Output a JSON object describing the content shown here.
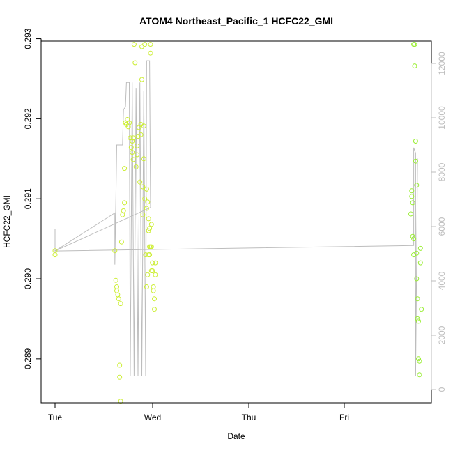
{
  "chart_data": {
    "type": "scatter",
    "title": "ATOM4 Northeast_Pacific_1 HCFC22_GMI",
    "xlabel": "Date",
    "ylabel": "HCFC22_GMI",
    "x_ticks": [
      "Tue",
      "Wed",
      "Thu",
      "Fri"
    ],
    "xlim": [
      -0.0,
      3.87
    ],
    "ylim": [
      0.28845,
      0.29297
    ],
    "y_ticks": [
      "0.289",
      "0.290",
      "0.291",
      "0.292",
      "0.293"
    ],
    "y_tick_values": [
      0.289,
      0.29,
      0.291,
      0.292,
      0.293
    ],
    "y2lim": [
      0,
      12500
    ],
    "y2_ticks": [
      "0",
      "2000",
      "4000",
      "6000",
      "8000",
      "10000",
      "12000"
    ],
    "y2_tick_values": [
      0,
      2000,
      4000,
      6000,
      8000,
      10000,
      12000
    ],
    "grid": false,
    "colors": {
      "points": "#ccee33",
      "points_late": "#99ee33",
      "altitude_line": "#bdbdbd",
      "axis": "#000000"
    },
    "series": [
      {
        "values": [
          [
            0.0,
            0.29035
          ],
          [
            0.0,
            0.2903
          ],
          [
            0.62,
            0.29035
          ],
          [
            0.63,
            0.28998
          ],
          [
            0.64,
            0.2899
          ],
          [
            0.64,
            0.28985
          ],
          [
            0.65,
            0.2898
          ],
          [
            0.66,
            0.28975
          ],
          [
            0.67,
            0.28892
          ],
          [
            0.67,
            0.28877
          ],
          [
            0.68,
            0.28847
          ],
          [
            0.68,
            0.28969
          ],
          [
            0.69,
            0.29046
          ],
          [
            0.7,
            0.2908
          ],
          [
            0.71,
            0.29085
          ],
          [
            0.72,
            0.29095
          ],
          [
            0.72,
            0.29138
          ],
          [
            0.73,
            0.29195
          ],
          [
            0.74,
            0.29193
          ],
          [
            0.75,
            0.29199
          ],
          [
            0.76,
            0.2919
          ],
          [
            0.77,
            0.29195
          ],
          [
            0.78,
            0.29176
          ],
          [
            0.79,
            0.29164
          ],
          [
            0.8,
            0.29172
          ],
          [
            0.8,
            0.29158
          ],
          [
            0.81,
            0.29149
          ],
          [
            0.81,
            0.29176
          ],
          [
            0.82,
            0.29293
          ],
          [
            0.83,
            0.2927
          ],
          [
            0.84,
            0.2914
          ],
          [
            0.85,
            0.29155
          ],
          [
            0.85,
            0.29166
          ],
          [
            0.86,
            0.29178
          ],
          [
            0.87,
            0.29189
          ],
          [
            0.88,
            0.29121
          ],
          [
            0.89,
            0.2918
          ],
          [
            0.89,
            0.29193
          ],
          [
            0.9,
            0.29249
          ],
          [
            0.9,
            0.2929
          ],
          [
            0.91,
            0.29115
          ],
          [
            0.91,
            0.2908
          ],
          [
            0.92,
            0.2915
          ],
          [
            0.92,
            0.29191
          ],
          [
            0.93,
            0.29293
          ],
          [
            0.93,
            0.291
          ],
          [
            0.94,
            0.2903
          ],
          [
            0.95,
            0.29112
          ],
          [
            0.95,
            0.29088
          ],
          [
            0.96,
            0.29096
          ],
          [
            0.97,
            0.29075
          ],
          [
            0.97,
            0.2906
          ],
          [
            0.98,
            0.2904
          ],
          [
            0.98,
            0.2903
          ],
          [
            0.99,
            0.29293
          ],
          [
            0.99,
            0.29282
          ],
          [
            1.0,
            0.29068
          ],
          [
            1.0,
            0.2904
          ],
          [
            1.01,
            0.2902
          ],
          [
            1.01,
            0.2901
          ],
          [
            1.02,
            0.2899
          ],
          [
            1.02,
            0.28985
          ],
          [
            1.03,
            0.28962
          ],
          [
            1.03,
            0.28975
          ],
          [
            1.04,
            0.29005
          ],
          [
            1.04,
            0.2902
          ],
          [
            0.95,
            0.2899
          ],
          [
            0.96,
            0.29005
          ],
          [
            0.97,
            0.2903
          ],
          [
            0.98,
            0.29063
          ],
          [
            0.99,
            0.2904
          ],
          [
            1.0,
            0.2901
          ]
        ]
      },
      {
        "values": [
          [
            3.69,
            0.29081
          ],
          [
            3.7,
            0.2911
          ],
          [
            3.7,
            0.29103
          ],
          [
            3.71,
            0.29095
          ],
          [
            3.71,
            0.29053
          ],
          [
            3.72,
            0.2905
          ],
          [
            3.72,
            0.2903
          ],
          [
            3.72,
            0.29293
          ],
          [
            3.73,
            0.29293
          ],
          [
            3.73,
            0.29266
          ],
          [
            3.74,
            0.29147
          ],
          [
            3.74,
            0.29172
          ],
          [
            3.75,
            0.29117
          ],
          [
            3.75,
            0.29032
          ],
          [
            3.75,
            0.29
          ],
          [
            3.76,
            0.28975
          ],
          [
            3.76,
            0.2895
          ],
          [
            3.77,
            0.28947
          ],
          [
            3.77,
            0.289
          ],
          [
            3.78,
            0.28897
          ],
          [
            3.78,
            0.2888
          ],
          [
            3.79,
            0.2902
          ],
          [
            3.79,
            0.29038
          ],
          [
            3.8,
            0.28962
          ]
        ]
      }
    ],
    "secondary_line": {
      "description_axis": "right",
      "values": [
        [
          0.0,
          5900
        ],
        [
          0.0,
          5100
        ],
        [
          0.62,
          6500
        ],
        [
          0.62,
          4600
        ],
        [
          0.64,
          9000
        ],
        [
          0.7,
          9000
        ],
        [
          0.71,
          10300
        ],
        [
          0.73,
          10400
        ],
        [
          0.74,
          11300
        ],
        [
          0.77,
          11300
        ],
        [
          0.78,
          500
        ],
        [
          0.8,
          11300
        ],
        [
          0.82,
          500
        ],
        [
          0.84,
          11100
        ],
        [
          0.86,
          500
        ],
        [
          0.88,
          11300
        ],
        [
          0.9,
          500
        ],
        [
          0.92,
          11000
        ],
        [
          0.94,
          500
        ],
        [
          0.95,
          12100
        ],
        [
          0.98,
          12100
        ],
        [
          0.99,
          6700
        ],
        [
          0.0,
          5100
        ],
        [
          3.72,
          5300
        ],
        [
          3.72,
          8900
        ],
        [
          3.74,
          8700
        ],
        [
          3.74,
          500
        ],
        [
          3.76,
          8500
        ]
      ]
    }
  }
}
